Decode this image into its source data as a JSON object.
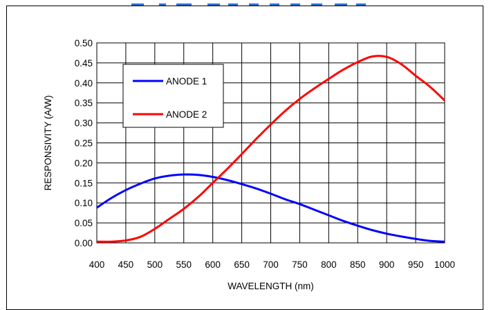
{
  "chart_data": {
    "type": "line",
    "title": "",
    "xlabel": "WAVELENGTH (nm)",
    "ylabel": "RESPONSIVITY (A/W)",
    "xlim": [
      400,
      1000
    ],
    "ylim": [
      0,
      0.5
    ],
    "x_ticks": [
      "400",
      "450",
      "500",
      "550",
      "600",
      "650",
      "700",
      "750",
      "800",
      "850",
      "900",
      "950",
      "1000"
    ],
    "y_ticks": [
      "0.00",
      "0.05",
      "0.10",
      "0.15",
      "0.20",
      "0.25",
      "0.30",
      "0.35",
      "0.40",
      "0.45",
      "0.50"
    ],
    "grid": true,
    "legend_position": "top-left",
    "series": [
      {
        "name": "ANODE 1",
        "color": "#0000ff",
        "x": [
          400,
          425,
          450,
          475,
          500,
          525,
          550,
          575,
          600,
          625,
          650,
          675,
          700,
          725,
          750,
          775,
          800,
          825,
          850,
          875,
          900,
          925,
          950,
          975,
          1000
        ],
        "values": [
          0.088,
          0.112,
          0.132,
          0.148,
          0.161,
          0.168,
          0.171,
          0.17,
          0.165,
          0.157,
          0.147,
          0.136,
          0.123,
          0.109,
          0.097,
          0.083,
          0.069,
          0.055,
          0.043,
          0.032,
          0.023,
          0.016,
          0.01,
          0.005,
          0.003
        ]
      },
      {
        "name": "ANODE 2",
        "color": "#ff0000",
        "x": [
          400,
          425,
          450,
          475,
          500,
          525,
          550,
          575,
          600,
          625,
          650,
          675,
          700,
          725,
          750,
          775,
          800,
          825,
          850,
          875,
          900,
          925,
          950,
          975,
          1000
        ],
        "values": [
          0.003,
          0.003,
          0.006,
          0.015,
          0.035,
          0.06,
          0.085,
          0.115,
          0.15,
          0.185,
          0.222,
          0.26,
          0.296,
          0.33,
          0.36,
          0.386,
          0.41,
          0.433,
          0.452,
          0.466,
          0.465,
          0.447,
          0.418,
          0.39,
          0.356
        ]
      }
    ]
  }
}
